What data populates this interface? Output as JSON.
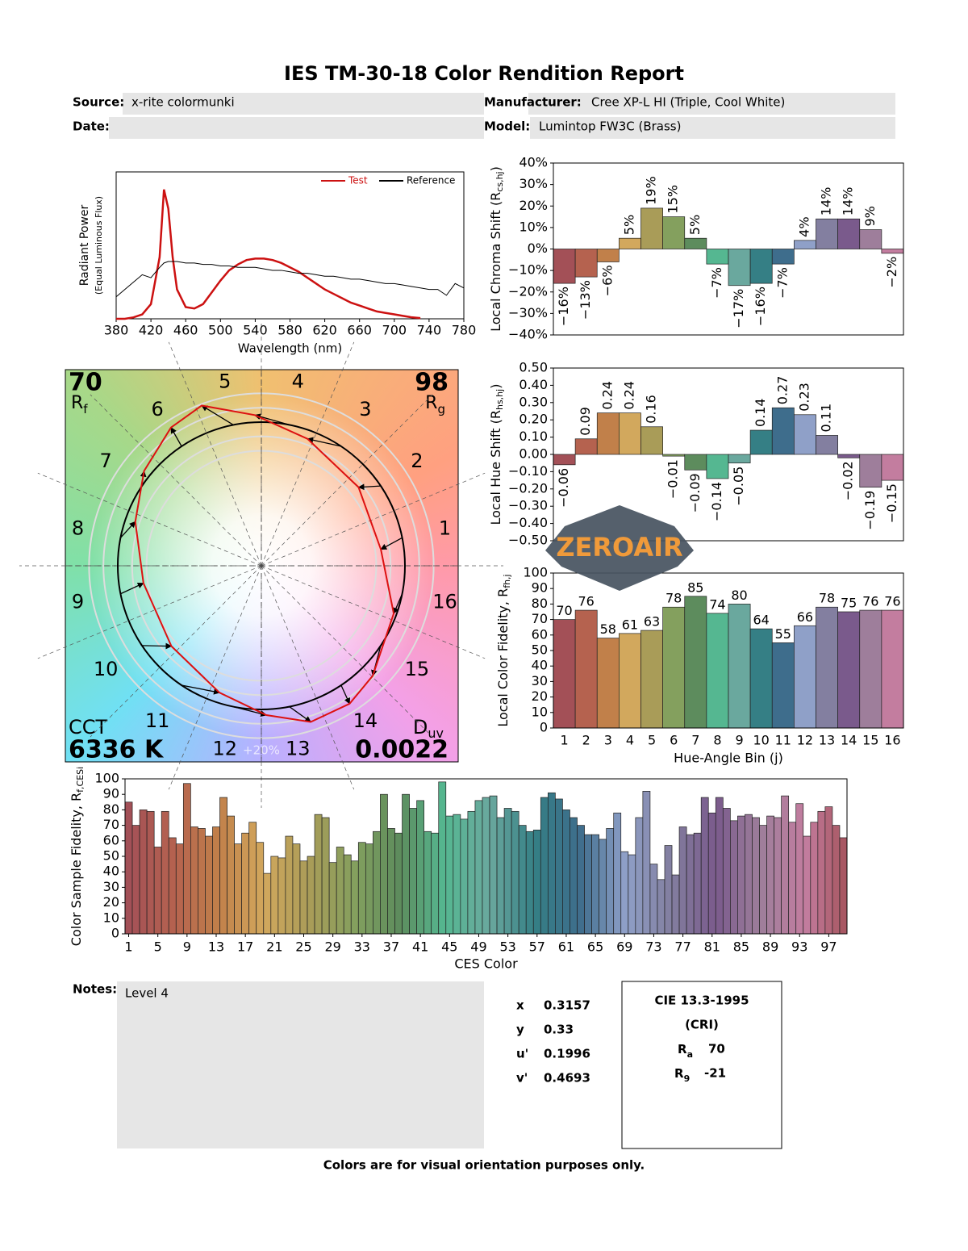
{
  "header": {
    "title": "IES TM-30-18 Color Rendition Report",
    "source_label": "Source:",
    "source": "x-rite colormunki",
    "manufacturer_label": "Manufacturer:",
    "manufacturer": "Cree XP-L HI (Triple, Cool White)",
    "date_label": "Date:",
    "model_label": "Model:",
    "model": "Lumintop FW3C (Brass)"
  },
  "bin_colors": [
    "#a35057",
    "#b5624f",
    "#c1804a",
    "#d2a85d",
    "#a99c58",
    "#84a05e",
    "#5d8c5d",
    "#55b791",
    "#6aa89e",
    "#357f85",
    "#3e6d8c",
    "#8fa0c8",
    "#837fa0",
    "#7a5a8c",
    "#9e7e9b",
    "#c37d9f"
  ],
  "chart_data": [
    {
      "type": "line",
      "xlabel": "Wavelength (nm)",
      "ylabel": {
        "main": "Radiant Power",
        "sub": "(Equal Luminous Flux)"
      },
      "legend": "upper right",
      "x": [
        380,
        390,
        400,
        410,
        420,
        430,
        435,
        440,
        445,
        450,
        460,
        470,
        480,
        490,
        500,
        510,
        520,
        530,
        540,
        550,
        560,
        570,
        580,
        590,
        600,
        610,
        620,
        630,
        640,
        650,
        660,
        670,
        680,
        690,
        700,
        710,
        720,
        730,
        740,
        750,
        760,
        770,
        780
      ],
      "series": [
        {
          "name": "Test",
          "color": "#cc1111",
          "values": [
            0,
            0,
            0.01,
            0.03,
            0.1,
            0.42,
            0.88,
            0.75,
            0.42,
            0.2,
            0.08,
            0.07,
            0.1,
            0.18,
            0.26,
            0.33,
            0.37,
            0.4,
            0.41,
            0.41,
            0.4,
            0.38,
            0.35,
            0.32,
            0.28,
            0.24,
            0.2,
            0.17,
            0.14,
            0.11,
            0.09,
            0.07,
            0.05,
            0.04,
            0.03,
            0.02,
            0.01,
            0.005,
            null,
            null,
            null,
            null,
            null
          ]
        },
        {
          "name": "Reference",
          "color": "#000000",
          "values": [
            0.15,
            0.2,
            0.25,
            0.3,
            0.28,
            0.35,
            0.38,
            0.39,
            0.39,
            0.39,
            0.38,
            0.38,
            0.37,
            0.37,
            0.36,
            0.36,
            0.35,
            0.35,
            0.35,
            0.34,
            0.33,
            0.33,
            0.32,
            0.31,
            0.31,
            0.3,
            0.29,
            0.29,
            0.28,
            0.27,
            0.27,
            0.26,
            0.25,
            0.24,
            0.24,
            0.23,
            0.22,
            0.21,
            0.2,
            0.2,
            0.16,
            0.24,
            0.21
          ]
        }
      ],
      "xlim": [
        380,
        780
      ],
      "xticks": [
        380,
        420,
        460,
        500,
        540,
        580,
        620,
        660,
        700,
        740,
        780
      ],
      "ylim": [
        0,
        1
      ]
    },
    {
      "type": "vector",
      "rf": 70,
      "rf_symbol": "R",
      "rf_sub": "f",
      "rg": 98,
      "rg_symbol": "R",
      "rg_sub": "g",
      "cct_label": "CCT",
      "cct": "6336 K",
      "duv_symbol": "D",
      "duv_sub": "uv",
      "duv": 0.0022,
      "ring_label": "+20%",
      "reference_color": "#000000",
      "test_color": "#dd1111"
    },
    {
      "type": "bar",
      "ylabel": {
        "main": "Local Chroma Shift (R",
        "sub": "cs,hj",
        "tail": ")"
      },
      "values": [
        -16,
        -13,
        -6,
        5,
        19,
        15,
        5,
        -7,
        -17,
        -16,
        -7,
        4,
        14,
        14,
        9,
        -2
      ],
      "value_labels": [
        "−16%",
        "−13%",
        "−6%",
        "5%",
        "19%",
        "15%",
        "5%",
        "−7%",
        "−17%",
        "−16%",
        "−7%",
        "4%",
        "14%",
        "14%",
        "9%",
        "−2%"
      ],
      "ylim": [
        -40,
        40
      ],
      "yticks": [
        {
          "value": 40,
          "label": "40%"
        },
        {
          "value": 30,
          "label": "30%"
        },
        {
          "value": 20,
          "label": "20%"
        },
        {
          "value": 10,
          "label": "10%"
        },
        {
          "value": 0,
          "label": "0%"
        },
        {
          "value": -10,
          "label": "−10%"
        },
        {
          "value": -20,
          "label": "−20%"
        },
        {
          "value": -30,
          "label": "−30%"
        },
        {
          "value": -40,
          "label": "−40%"
        }
      ]
    },
    {
      "type": "bar",
      "ylabel": {
        "main": "Local Hue Shift (R",
        "sub": "hs,hj",
        "tail": ")"
      },
      "values": [
        -0.06,
        0.09,
        0.24,
        0.24,
        0.16,
        -0.01,
        -0.09,
        -0.14,
        -0.05,
        0.14,
        0.27,
        0.23,
        0.11,
        -0.02,
        -0.19,
        -0.15
      ],
      "value_labels": [
        "−0.06",
        "0.09",
        "0.24",
        "0.24",
        "0.16",
        "−0.01",
        "−0.09",
        "−0.14",
        "−0.05",
        "0.14",
        "0.27",
        "0.23",
        "0.11",
        "−0.02",
        "−0.19",
        "−0.15"
      ],
      "ylim": [
        -0.5,
        0.5
      ],
      "yticks": [
        {
          "value": 0.5,
          "label": "0.50"
        },
        {
          "value": 0.4,
          "label": "0.40"
        },
        {
          "value": 0.3,
          "label": "0.30"
        },
        {
          "value": 0.2,
          "label": "0.20"
        },
        {
          "value": 0.1,
          "label": "0.10"
        },
        {
          "value": 0,
          "label": "0.00"
        },
        {
          "value": -0.1,
          "label": "−0.10"
        },
        {
          "value": -0.2,
          "label": "−0.20"
        },
        {
          "value": -0.3,
          "label": "−0.30"
        },
        {
          "value": -0.4,
          "label": "−0.40"
        },
        {
          "value": -0.5,
          "label": "−0.50"
        }
      ]
    },
    {
      "type": "bar",
      "xlabel": "Hue-Angle Bin (j)",
      "ylabel": {
        "main": "Local Color Fidelity, R",
        "sub": "fh,j"
      },
      "categories": [
        "1",
        "2",
        "3",
        "4",
        "5",
        "6",
        "7",
        "8",
        "9",
        "10",
        "11",
        "12",
        "13",
        "14",
        "15",
        "16"
      ],
      "values": [
        70,
        76,
        58,
        61,
        63,
        78,
        85,
        74,
        80,
        64,
        55,
        66,
        78,
        75,
        76,
        76
      ],
      "show_values": true,
      "ylim": [
        0,
        100
      ],
      "yticks": [
        0,
        10,
        20,
        30,
        40,
        50,
        60,
        70,
        80,
        90,
        100
      ]
    },
    {
      "type": "bar",
      "xlabel": "CES Color",
      "ylabel": {
        "main": "Color Sample Fidelity, R",
        "sub": "f,CESi"
      },
      "values": [
        85,
        70,
        80,
        79,
        56,
        79,
        62,
        58,
        97,
        69,
        68,
        63,
        69,
        88,
        76,
        58,
        65,
        72,
        59,
        39,
        50,
        49,
        63,
        58,
        47,
        50,
        77,
        75,
        46,
        56,
        51,
        47,
        59,
        58,
        66,
        90,
        68,
        65,
        90,
        81,
        86,
        66,
        65,
        98,
        76,
        77,
        74,
        79,
        86,
        88,
        89,
        75,
        81,
        79,
        70,
        66,
        67,
        88,
        91,
        87,
        80,
        75,
        70,
        64,
        64,
        61,
        68,
        78,
        53,
        51,
        75,
        92,
        45,
        35,
        57,
        38,
        69,
        64,
        65,
        88,
        78,
        88,
        81,
        73,
        76,
        77,
        75,
        70,
        76,
        75,
        89,
        72,
        84,
        63,
        72,
        79,
        82,
        70,
        62
      ],
      "xticks": [
        1,
        5,
        9,
        13,
        17,
        21,
        25,
        29,
        33,
        37,
        41,
        45,
        49,
        53,
        57,
        61,
        65,
        69,
        73,
        77,
        81,
        85,
        89,
        93,
        97
      ],
      "ylim": [
        0,
        100
      ],
      "yticks": [
        0,
        10,
        20,
        30,
        40,
        50,
        60,
        70,
        80,
        90,
        100
      ]
    }
  ],
  "notes": {
    "label": "Notes:",
    "text": "Level 4"
  },
  "chromaticity": [
    {
      "label": "x",
      "value": 0.3157
    },
    {
      "label": "y",
      "value": 0.33
    },
    {
      "label": "u'",
      "value": 0.1996
    },
    {
      "label": "v'",
      "value": 0.4693
    }
  ],
  "cri": {
    "title": "CIE 13.3-1995",
    "subtitle": "(CRI)",
    "ra_symbol": "R",
    "ra_sub": "a",
    "ra": 70,
    "r9_symbol": "R",
    "r9_sub": "9",
    "r9": -21
  },
  "footer": "Colors are for visual orientation purposes only.",
  "watermark": "ZEROAIR"
}
